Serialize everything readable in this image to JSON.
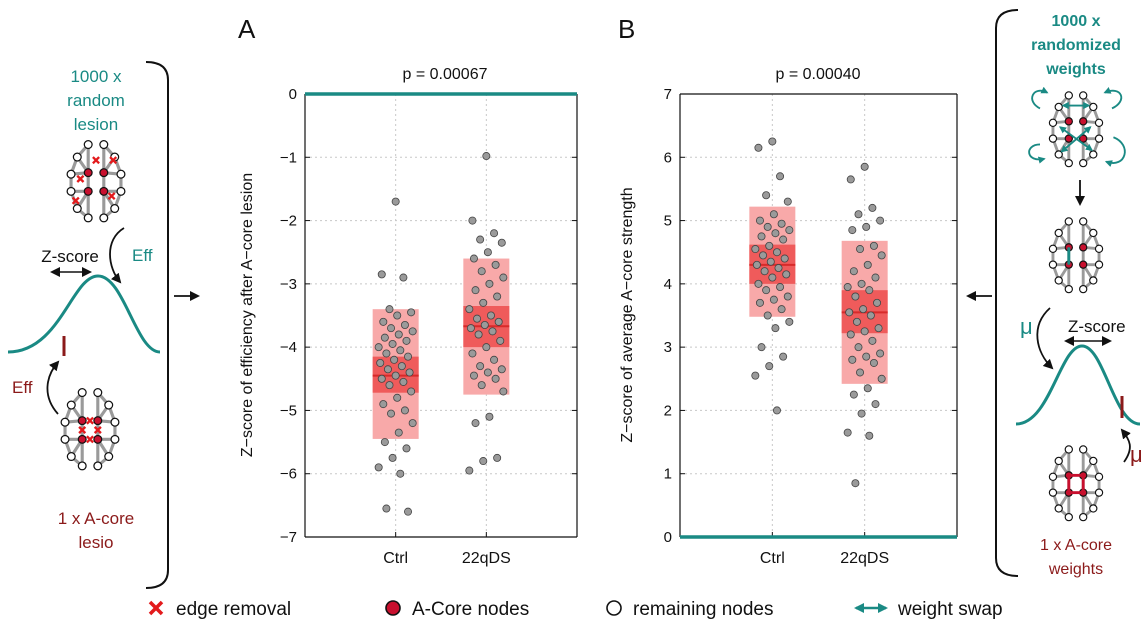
{
  "colors": {
    "teal": "#1a8a84",
    "darkred": "#8b1a1a",
    "red": "#e31a1c",
    "nodeRed": "#c8102e",
    "box_outer": "#f8a9a9",
    "box_inner": "#ef5b5b",
    "median": "#d82a2a",
    "point": "#9a9a9a"
  },
  "panels": {
    "A": {
      "letter": "A",
      "pvalue": "p = 0.00067"
    },
    "B": {
      "letter": "B",
      "pvalue": "p = 0.00040"
    }
  },
  "left_schematic": {
    "top_label": [
      "1000 x",
      "random",
      "lesion"
    ],
    "zscore_label": "Z-score",
    "eff_right": "Eff",
    "eff_left": "Eff",
    "bottom_label": [
      "1 x A-core",
      "lesio"
    ]
  },
  "right_schematic": {
    "top_label": [
      "1000 x",
      "randomized",
      "weights"
    ],
    "mu_left": "μ",
    "zscore_label": "Z-score",
    "mu_right": "μ",
    "bottom_label": [
      "1 x A-core",
      "weights"
    ]
  },
  "legend": [
    {
      "label": "edge removal",
      "icon": "red-x-icon"
    },
    {
      "label": "A-Core nodes",
      "icon": "red-node-icon"
    },
    {
      "label": "remaining nodes",
      "icon": "white-node-icon"
    },
    {
      "label": "weight swap",
      "icon": "double-arrow-icon"
    }
  ],
  "chart_data": [
    {
      "type": "scatter",
      "panel": "A",
      "title": "p = 0.00067",
      "xlabel": "",
      "ylabel": "Z−score of efficiency after A−core lesion",
      "categories": [
        "Ctrl",
        "22qDS"
      ],
      "ylim": [
        -7,
        0
      ],
      "yticks": [
        0,
        -1,
        -2,
        -3,
        -4,
        -5,
        -6,
        -7
      ],
      "grid": true,
      "reference_line": 0,
      "boxes": [
        {
          "category": "Ctrl",
          "outer": [
            -5.45,
            -3.4
          ],
          "inner": [
            -4.72,
            -4.15
          ],
          "median": -4.45
        },
        {
          "category": "22qDS",
          "outer": [
            -4.75,
            -2.6
          ],
          "inner": [
            -4.0,
            -3.35
          ],
          "median": -3.67
        }
      ],
      "series": [
        {
          "category": "Ctrl",
          "values": [
            -1.7,
            -2.85,
            -2.9,
            -3.4,
            -3.45,
            -3.5,
            -3.6,
            -3.65,
            -3.7,
            -3.75,
            -3.8,
            -3.85,
            -3.9,
            -3.95,
            -4.0,
            -4.05,
            -4.1,
            -4.15,
            -4.2,
            -4.25,
            -4.3,
            -4.35,
            -4.4,
            -4.45,
            -4.5,
            -4.55,
            -4.6,
            -4.7,
            -4.8,
            -4.9,
            -5.0,
            -5.05,
            -5.2,
            -5.35,
            -5.5,
            -5.6,
            -5.75,
            -5.9,
            -6.0,
            -6.55,
            -6.6
          ]
        },
        {
          "category": "22qDS",
          "values": [
            -0.98,
            -2.0,
            -2.2,
            -2.3,
            -2.35,
            -2.5,
            -2.6,
            -2.7,
            -2.8,
            -2.9,
            -3.0,
            -3.1,
            -3.2,
            -3.3,
            -3.4,
            -3.5,
            -3.55,
            -3.6,
            -3.65,
            -3.7,
            -3.75,
            -3.8,
            -3.9,
            -4.0,
            -4.1,
            -4.2,
            -4.3,
            -4.35,
            -4.4,
            -4.45,
            -4.5,
            -4.6,
            -4.7,
            -5.1,
            -5.2,
            -5.75,
            -5.8,
            -5.95
          ]
        }
      ]
    },
    {
      "type": "scatter",
      "panel": "B",
      "title": "p = 0.00040",
      "xlabel": "",
      "ylabel": "Z−score of average A−core strength",
      "categories": [
        "Ctrl",
        "22qDS"
      ],
      "ylim": [
        0,
        7
      ],
      "yticks": [
        7,
        6,
        5,
        4,
        3,
        2,
        1,
        0
      ],
      "grid": true,
      "reference_line": 0,
      "boxes": [
        {
          "category": "Ctrl",
          "outer": [
            3.48,
            5.22
          ],
          "inner": [
            4.0,
            4.62
          ],
          "median": 4.3
        },
        {
          "category": "22qDS",
          "outer": [
            2.42,
            4.68
          ],
          "inner": [
            3.22,
            3.9
          ],
          "median": 3.55
        }
      ],
      "series": [
        {
          "category": "Ctrl",
          "values": [
            6.25,
            6.15,
            5.7,
            5.4,
            5.3,
            5.1,
            5.0,
            4.95,
            4.9,
            4.85,
            4.8,
            4.75,
            4.7,
            4.6,
            4.55,
            4.5,
            4.45,
            4.4,
            4.35,
            4.3,
            4.25,
            4.2,
            4.15,
            4.1,
            4.0,
            3.95,
            3.9,
            3.8,
            3.75,
            3.7,
            3.6,
            3.5,
            3.4,
            3.3,
            3.0,
            2.85,
            2.7,
            2.55,
            2.0
          ]
        },
        {
          "category": "22qDS",
          "values": [
            5.85,
            5.65,
            5.2,
            5.1,
            5.0,
            4.9,
            4.85,
            4.6,
            4.55,
            4.45,
            4.3,
            4.2,
            4.1,
            4.0,
            3.95,
            3.9,
            3.8,
            3.7,
            3.6,
            3.55,
            3.5,
            3.4,
            3.3,
            3.25,
            3.2,
            3.1,
            3.0,
            2.9,
            2.85,
            2.8,
            2.75,
            2.6,
            2.5,
            2.35,
            2.25,
            2.1,
            1.95,
            1.65,
            1.6,
            0.85
          ]
        }
      ]
    }
  ]
}
